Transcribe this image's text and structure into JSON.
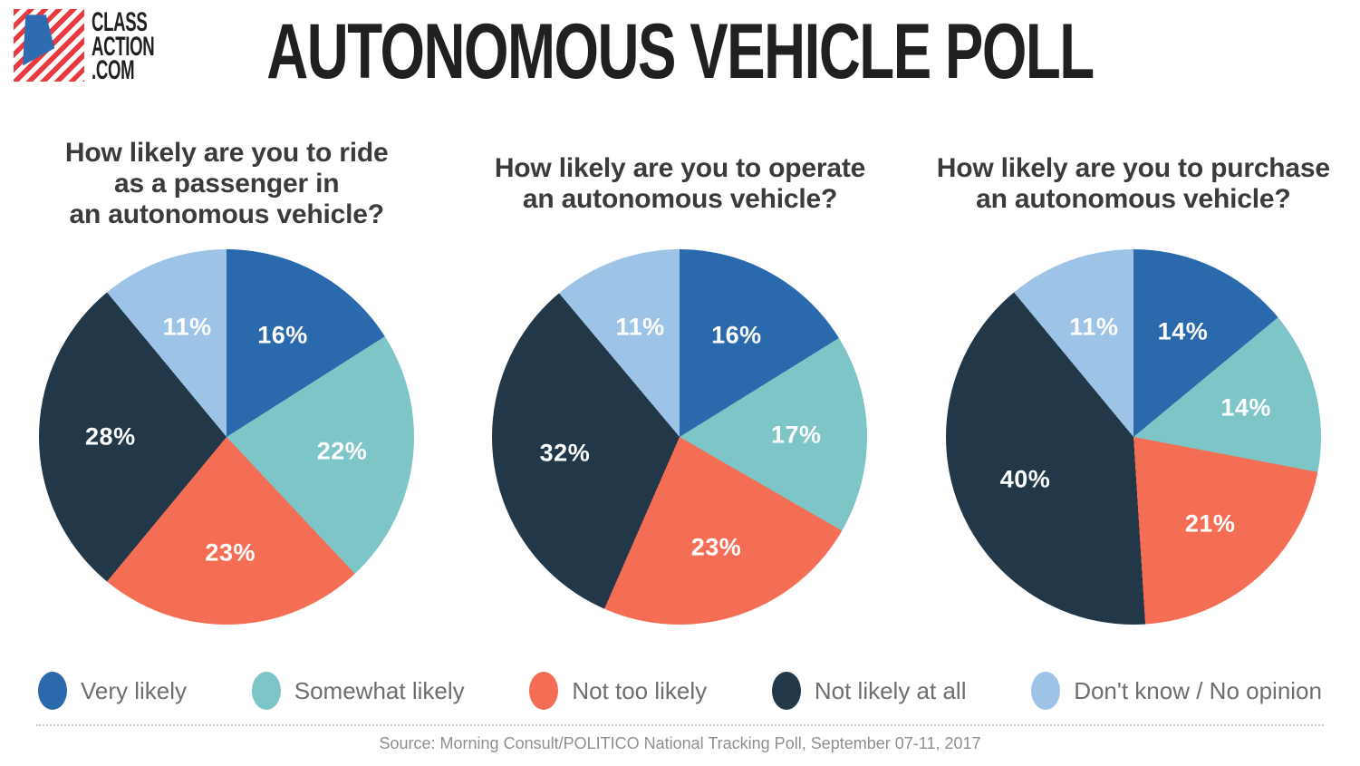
{
  "logo": {
    "line1": "CLASS",
    "line2": "ACTION",
    "line3": ".COM"
  },
  "title": "AUTONOMOUS VEHICLE POLL",
  "legend": {
    "items": [
      {
        "label": "Very likely",
        "color": "#2a6aac"
      },
      {
        "label": "Somewhat likely",
        "color": "#7dc5c7"
      },
      {
        "label": "Not too likely",
        "color": "#f46e55"
      },
      {
        "label": "Not likely at all",
        "color": "#223848"
      },
      {
        "label": "Don't know / No opinion",
        "color": "#9dc4e6"
      }
    ]
  },
  "chart_data": [
    {
      "type": "pie",
      "title": "How likely are you to ride\nas a passenger in\nan autonomous vehicle?",
      "categories": [
        "Very likely",
        "Somewhat likely",
        "Not too likely",
        "Not likely at all",
        "Don't know / No opinion"
      ],
      "values": [
        16,
        22,
        23,
        28,
        11
      ],
      "slice_labels": [
        "16%",
        "22%",
        "23%",
        "28%",
        "11%"
      ],
      "colors": [
        "#2a6aac",
        "#7dc5c7",
        "#f46e55",
        "#223848",
        "#9dc4e6"
      ],
      "start_angle_deg": 0,
      "direction": "clockwise",
      "legend_position": "bottom-shared"
    },
    {
      "type": "pie",
      "title": "How likely are you to operate\nan autonomous vehicle?",
      "categories": [
        "Very likely",
        "Somewhat likely",
        "Not too likely",
        "Not likely at all",
        "Don't know / No opinion"
      ],
      "values": [
        16,
        17,
        23,
        32,
        11
      ],
      "slice_labels": [
        "16%",
        "17%",
        "23%",
        "32%",
        "11%"
      ],
      "colors": [
        "#2a6aac",
        "#7dc5c7",
        "#f46e55",
        "#223848",
        "#9dc4e6"
      ],
      "start_angle_deg": 0,
      "direction": "clockwise",
      "legend_position": "bottom-shared"
    },
    {
      "type": "pie",
      "title": "How likely are you to purchase\nan autonomous vehicle?",
      "categories": [
        "Very likely",
        "Somewhat likely",
        "Not too likely",
        "Not likely at all",
        "Don't know / No opinion"
      ],
      "values": [
        14,
        14,
        21,
        40,
        11
      ],
      "slice_labels": [
        "14%",
        "14%",
        "21%",
        "40%",
        "11%"
      ],
      "colors": [
        "#2a6aac",
        "#7dc5c7",
        "#f46e55",
        "#223848",
        "#9dc4e6"
      ],
      "start_angle_deg": 0,
      "direction": "clockwise",
      "legend_position": "bottom-shared"
    }
  ],
  "source": "Source: Morning Consult/POLITICO National Tracking Poll, September 07-11, 2017"
}
